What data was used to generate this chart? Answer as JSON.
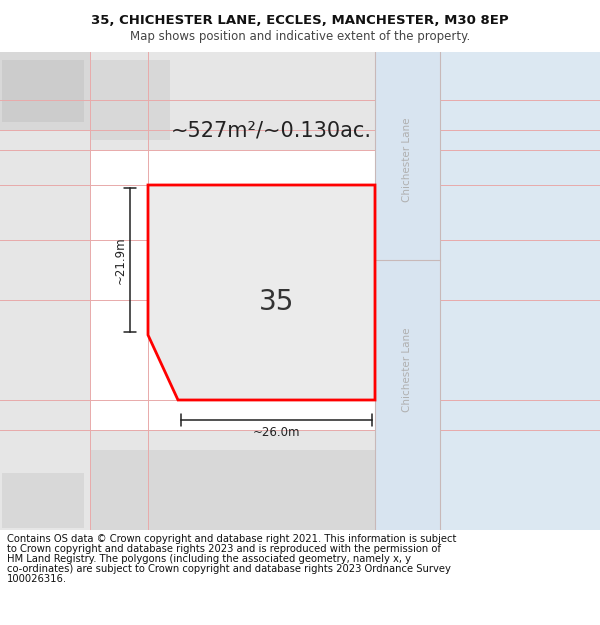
{
  "title_line1": "35, CHICHESTER LANE, ECCLES, MANCHESTER, M30 8EP",
  "title_line2": "Map shows position and indicative extent of the property.",
  "footer_lines": [
    "Contains OS data © Crown copyright and database right 2021. This information is subject",
    "to Crown copyright and database rights 2023 and is reproduced with the permission of",
    "HM Land Registry. The polygons (including the associated geometry, namely x, y",
    "co-ordinates) are subject to Crown copyright and database rights 2023 Ordnance Survey",
    "100026316."
  ],
  "area_label": "~527m²/~0.130ac.",
  "width_label": "~26.0m",
  "height_label": "~21.9m",
  "plot_number": "35",
  "map_bg": "#efefef",
  "road_bg": "#d8e4f0",
  "grid_line_color": "#e8aaaa",
  "plot_fill": "#ebebeb",
  "plot_border_color": "#ff0000",
  "building_fill": "#d6d6d6",
  "dim_color": "#222222",
  "parcel_light": "#e6e6e6",
  "parcel_mid": "#d8d8d8",
  "road_border": "#c8b8b8",
  "road_label_color": "#b0b0b0",
  "title_fontsize": 9.5,
  "subtitle_fontsize": 8.5,
  "footer_fontsize": 7.2,
  "area_fontsize": 15,
  "plot_num_fontsize": 20,
  "dim_fontsize": 8.5
}
